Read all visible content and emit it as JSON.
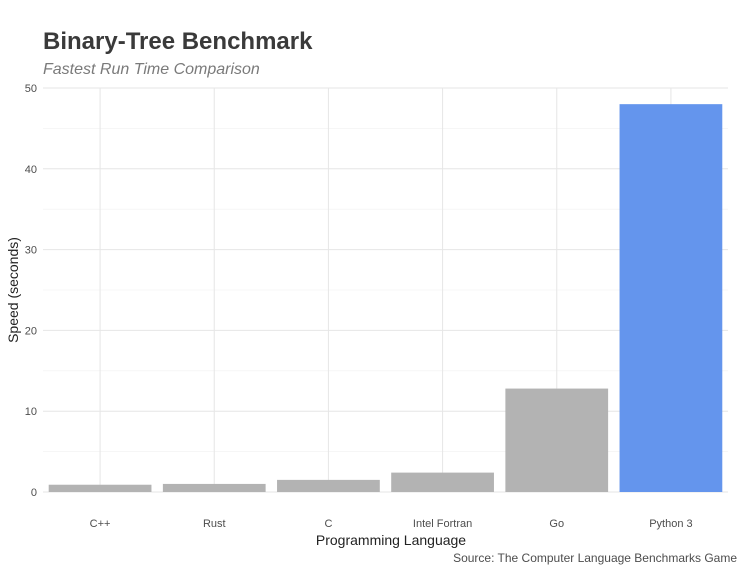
{
  "chart_data": {
    "type": "bar",
    "title": "Binary-Tree Benchmark",
    "subtitle": "Fastest Run Time Comparison",
    "xlabel": "Programming Language",
    "ylabel": "Speed (seconds)",
    "caption": "Source: The Computer Language Benchmarks Game",
    "categories": [
      "C++",
      "Rust",
      "C",
      "Intel Fortran",
      "Go",
      "Python 3"
    ],
    "values": [
      0.9,
      1.0,
      1.5,
      2.4,
      12.8,
      48.0
    ],
    "bar_colors": [
      "#b3b3b3",
      "#b3b3b3",
      "#b3b3b3",
      "#b3b3b3",
      "#b3b3b3",
      "#6495ed"
    ],
    "ylim": [
      0,
      50
    ],
    "yticks": [
      0,
      10,
      20,
      30,
      40,
      50
    ],
    "grid": true,
    "legend": "none"
  }
}
